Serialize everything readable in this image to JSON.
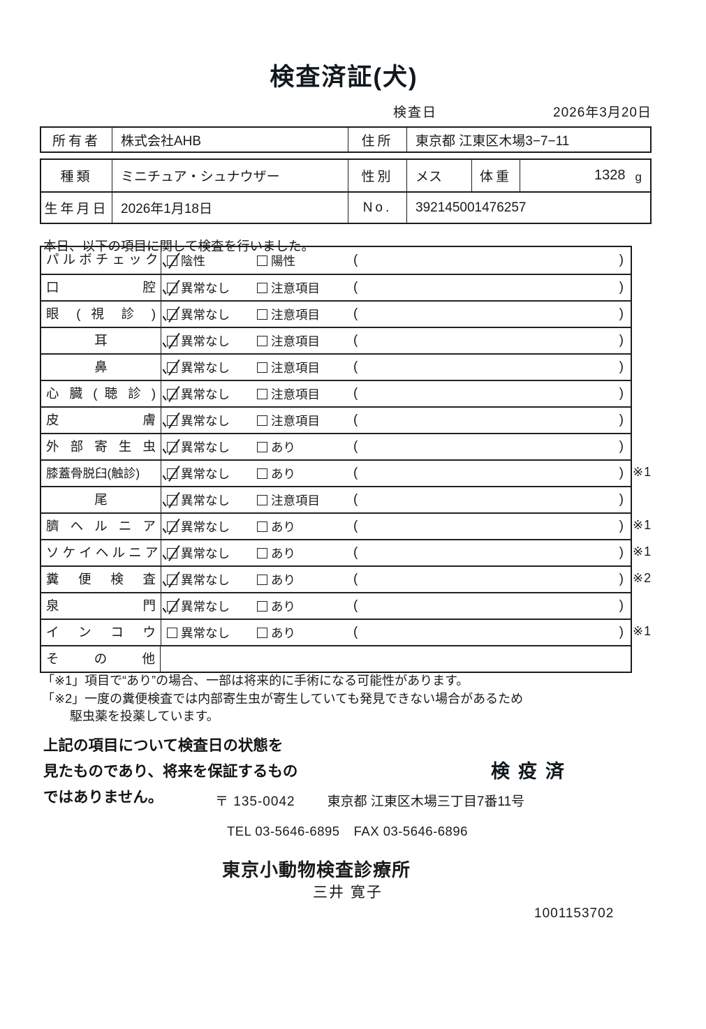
{
  "title": "検査済証(犬)",
  "inspection_date": {
    "label": "検査日",
    "value": "2026年3月20日"
  },
  "owner_table": {
    "owner_label": "所有者",
    "owner_value": "株式会社AHB",
    "address_label": "住所",
    "address_value": "東京都 江東区木場3−7−11"
  },
  "pet_table": {
    "breed_label": "種類",
    "breed_value": "ミニチュア・シュナウザー",
    "sex_label": "性別",
    "sex_value": "メス",
    "weight_label": "体重",
    "weight_value": "1328",
    "weight_unit": "g",
    "birth_label": "生年月日",
    "birth_value": "2026年1月18日",
    "no_label": "No.",
    "no_value": "392145001476257"
  },
  "intro": "本日、以下の項目に関して検査を行いました。",
  "checklist": {
    "paren_open": "(",
    "paren_close": ")",
    "rows": [
      {
        "label": "パ ル ボ チ ェ ッ ク",
        "opt1": "陰性",
        "opt1_checked": true,
        "opt2": "陽性",
        "opt2_checked": false,
        "paren_value": "",
        "note": ""
      },
      {
        "label": "口 腔",
        "opt1": "異常なし",
        "opt1_checked": true,
        "opt2": "注意項目",
        "opt2_checked": false,
        "paren_value": "",
        "note": ""
      },
      {
        "label": "眼 ( 視 診 )",
        "opt1": "異常なし",
        "opt1_checked": true,
        "opt2": "注意項目",
        "opt2_checked": false,
        "paren_value": "",
        "note": ""
      },
      {
        "label": "耳",
        "opt1": "異常なし",
        "opt1_checked": true,
        "opt2": "注意項目",
        "opt2_checked": false,
        "paren_value": "",
        "note": ""
      },
      {
        "label": "鼻",
        "opt1": "異常なし",
        "opt1_checked": true,
        "opt2": "注意項目",
        "opt2_checked": false,
        "paren_value": "",
        "note": ""
      },
      {
        "label": "心 臓 ( 聴 診 )",
        "opt1": "異常なし",
        "opt1_checked": true,
        "opt2": "注意項目",
        "opt2_checked": false,
        "paren_value": "",
        "note": ""
      },
      {
        "label": "皮 膚",
        "opt1": "異常なし",
        "opt1_checked": true,
        "opt2": "注意項目",
        "opt2_checked": false,
        "paren_value": "",
        "note": ""
      },
      {
        "label": "外 部 寄 生 虫",
        "opt1": "異常なし",
        "opt1_checked": true,
        "opt2": "あり",
        "opt2_checked": false,
        "paren_value": "",
        "note": ""
      },
      {
        "label": "膝蓋骨脱臼(触診)",
        "opt1": "異常なし",
        "opt1_checked": true,
        "opt2": "あり",
        "opt2_checked": false,
        "paren_value": "",
        "note": "※1"
      },
      {
        "label": "尾",
        "opt1": "異常なし",
        "opt1_checked": true,
        "opt2": "注意項目",
        "opt2_checked": false,
        "paren_value": "",
        "note": ""
      },
      {
        "label": "臍 ヘ ル ニ ア",
        "opt1": "異常なし",
        "opt1_checked": true,
        "opt2": "あり",
        "opt2_checked": false,
        "paren_value": "",
        "note": "※1"
      },
      {
        "label": "ソ ケ イ ヘ ル ニ ア",
        "opt1": "異常なし",
        "opt1_checked": true,
        "opt2": "あり",
        "opt2_checked": false,
        "paren_value": "",
        "note": "※1"
      },
      {
        "label": "糞 便 検 査",
        "opt1": "異常なし",
        "opt1_checked": true,
        "opt2": "あり",
        "opt2_checked": false,
        "paren_value": "",
        "note": "※2"
      },
      {
        "label": "泉 門",
        "opt1": "異常なし",
        "opt1_checked": true,
        "opt2": "あり",
        "opt2_checked": false,
        "paren_value": "",
        "note": ""
      },
      {
        "label": "イ ン コ ウ",
        "opt1": "異常なし",
        "opt1_checked": false,
        "opt2": "あり",
        "opt2_checked": false,
        "paren_value": "",
        "note": "※1"
      },
      {
        "label": "そ の 他",
        "other_value": ""
      }
    ]
  },
  "footnotes": {
    "line1": "「※1」項目で“あり”の場合、一部は将来的に手術になる可能性があります。",
    "line2": "「※2」一度の糞便検査では内部寄生虫が寄生していても発見できない場合があるため",
    "line3": "駆虫薬を投薬しています。"
  },
  "disclaimer": {
    "line1": "上記の項目について検査日の状態を",
    "line2": "見たものであり、将来を保証するもの",
    "line3": "ではありません。"
  },
  "quarantine_stamp": "検疫済",
  "clinic": {
    "postal_code": "〒 135-0042",
    "address": "東京都 江東区木場三丁目7番11号",
    "tel": "TEL 03-5646-6895",
    "fax": "FAX 03-5646-6896",
    "name": "東京小動物検査診療所",
    "veterinarian": "三井 寛子",
    "serial": "1001153702"
  }
}
